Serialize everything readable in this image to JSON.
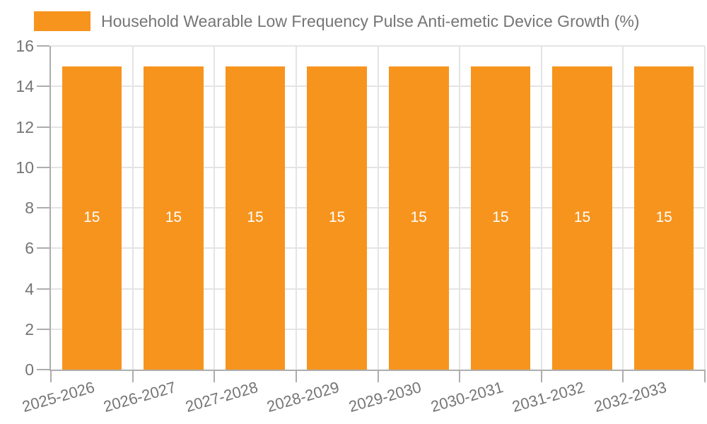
{
  "legend": {
    "label": "Household Wearable Low Frequency Pulse Anti-emetic Device Growth (%)"
  },
  "chart_data": {
    "type": "bar",
    "title": "Household Wearable Low Frequency Pulse Anti-emetic Device Growth (%)",
    "categories": [
      "2025-2026",
      "2026-2027",
      "2027-2028",
      "2028-2029",
      "2029-2030",
      "2030-2031",
      "2031-2032",
      "2032-2033"
    ],
    "values": [
      15,
      15,
      15,
      15,
      15,
      15,
      15,
      15
    ],
    "bar_value_labels": [
      "15",
      "15",
      "15",
      "15",
      "15",
      "15",
      "15",
      "15"
    ],
    "xlabel": "",
    "ylabel": "",
    "ylim": [
      0,
      16
    ],
    "yticks": [
      0,
      2,
      4,
      6,
      8,
      10,
      12,
      14,
      16
    ],
    "grid": true,
    "legend_position": "top-left",
    "x_tick_rotation_deg": -16,
    "colors": {
      "bar": "#F7941E",
      "axis_text": "#757575",
      "grid_line": "#E4E4E4",
      "axis_line": "#ADADAD",
      "bar_value_text": "#FFFFFF",
      "background": "#FFFFFF"
    }
  }
}
